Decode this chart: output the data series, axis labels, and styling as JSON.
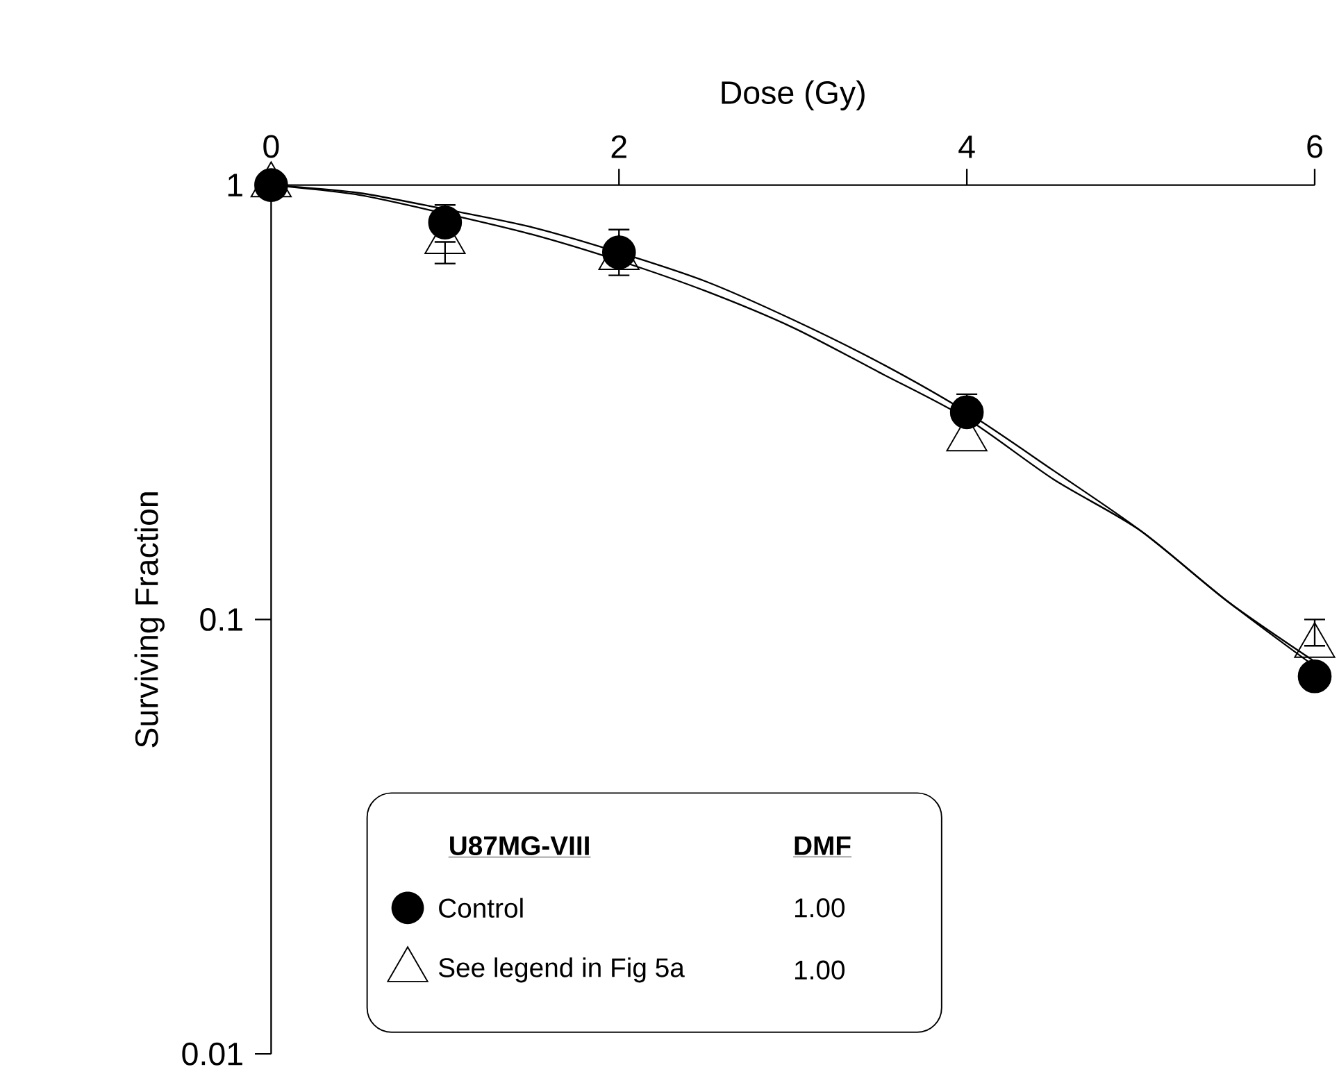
{
  "chart_data": {
    "type": "scatter",
    "xlabel": "Dose (Gy)",
    "ylabel": "Surviving Fraction",
    "legend_title": "U87MG-VIII",
    "xlim": [
      0,
      6
    ],
    "xticks": [
      0,
      2,
      4,
      6
    ],
    "ylim": [
      0.01,
      1
    ],
    "yticks": [
      0.01,
      0.1,
      1
    ],
    "log": "y",
    "legend": "bottom",
    "annotations": [
      "DMF",
      "1.00",
      "1.00"
    ],
    "series": [
      {
        "type": "line",
        "color": "#000000",
        "x": [
          0,
          0.5,
          1,
          1.5,
          2,
          2.5,
          3,
          3.5,
          4,
          4.5,
          5,
          5.5,
          6
        ],
        "values": [
          1.0,
          0.96,
          0.88,
          0.8,
          0.7,
          0.6,
          0.49,
          0.39,
          0.3,
          0.22,
          0.16,
          0.11,
          0.078
        ]
      },
      {
        "type": "line",
        "color": "#000000",
        "x": [
          0,
          0.5,
          1,
          1.5,
          2,
          2.5,
          3,
          3.5,
          4,
          4.5,
          5,
          5.5,
          6
        ],
        "values": [
          1.0,
          0.95,
          0.86,
          0.77,
          0.67,
          0.57,
          0.47,
          0.37,
          0.29,
          0.21,
          0.16,
          0.11,
          0.08
        ]
      },
      {
        "name": "Control",
        "color": "#000000",
        "marker": "circle",
        "x": [
          0,
          1,
          2,
          4,
          6
        ],
        "values": [
          1.0,
          0.82,
          0.7,
          0.3,
          0.074
        ],
        "errors": [
          null,
          [
            0.82,
            0.9
          ],
          [
            0.62,
            0.79
          ],
          [
            0.3,
            0.33
          ],
          null
        ]
      },
      {
        "name": "See legend in Fig 5a",
        "color": "#000000",
        "marker": "triangle",
        "x": [
          0,
          1,
          2,
          4,
          6
        ],
        "values": [
          1.0,
          0.74,
          0.68,
          0.26,
          0.087
        ],
        "errors": [
          null,
          [
            0.66,
            0.74
          ],
          null,
          null,
          [
            0.087,
            0.1
          ]
        ]
      }
    ]
  }
}
